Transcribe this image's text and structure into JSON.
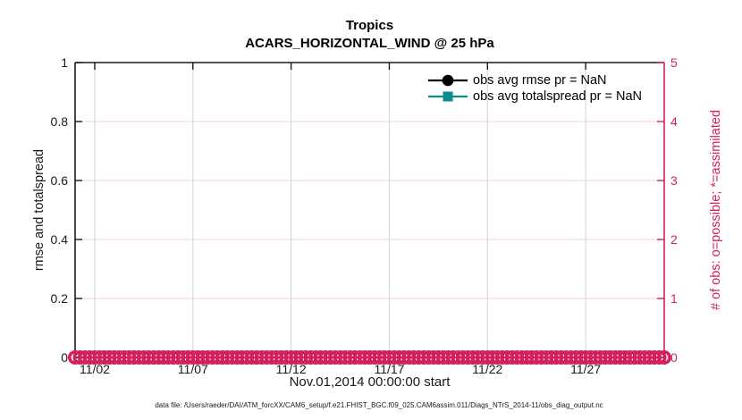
{
  "figure": {
    "title_line1": "Tropics",
    "title_line2": "ACARS_HORIZONTAL_WIND @ 25 hPa",
    "xlabel": "Nov.01,2014 00:00:00 start",
    "ylabel_left": "rmse and totalspread",
    "ylabel_right": "# of obs: o=possible; *=assimilated",
    "footer": "data file: /Users/raeder/DAI/ATM_forcXX/CAM6_setup/f.e21.FHIST_BGC.f09_025.CAM6assim.011/Diags_NTrS_2014-11/obs_diag_output.nc"
  },
  "legend": [
    {
      "label": "obs avg rmse pr = NaN",
      "color": "#000000",
      "marker": "circle"
    },
    {
      "label": "obs avg totalspread pr = NaN",
      "color": "#0d8e8e",
      "marker": "square"
    }
  ],
  "colors": {
    "obs_count_pink": "#d5205f",
    "grid_pink": "#f6d9e4",
    "grid_gray": "#d9d9d9",
    "axis_dark": "#1a1a1a",
    "teal": "#0d8e8e",
    "black": "#000000"
  },
  "chart_data": {
    "type": "line",
    "title": "Tropics",
    "subtitle": "ACARS_HORIZONTAL_WIND @ 25 hPa",
    "xlabel": "Nov.01,2014 00:00:00 start",
    "x_ticks": [
      "11/02",
      "11/07",
      "11/12",
      "11/17",
      "11/22",
      "11/27"
    ],
    "x_tick_days": [
      1,
      6,
      11,
      16,
      21,
      26
    ],
    "x_range_days": [
      0,
      30
    ],
    "x_bins_per_day": 4,
    "y_left": {
      "label": "rmse and totalspread",
      "tick_labels": [
        "0",
        "0.2",
        "0.4",
        "0.6",
        "0.8",
        "1"
      ],
      "tick_values": [
        0,
        0.2,
        0.4,
        0.6,
        0.8,
        1
      ],
      "range": [
        0,
        1
      ]
    },
    "y_right": {
      "label": "# of obs: o=possible; *=assimilated",
      "tick_labels": [
        "0",
        "1",
        "2",
        "3",
        "4",
        "5"
      ],
      "tick_values": [
        0,
        1,
        2,
        3,
        4,
        5
      ],
      "range": [
        0,
        5
      ]
    },
    "grid": true,
    "legend_position": "upper right",
    "series": [
      {
        "name": "obs avg rmse",
        "stat_value": "NaN",
        "axis": "left",
        "marker": "circle",
        "color": "#000000",
        "values": []
      },
      {
        "name": "obs avg totalspread",
        "stat_value": "NaN",
        "axis": "left",
        "marker": "square",
        "color": "#0d8e8e",
        "values": []
      },
      {
        "name": "# of obs possible (o)",
        "axis": "right",
        "marker": "o",
        "color": "#d5205f",
        "constant_value": 0,
        "note": "dense row of o markers at y=0 spanning Nov 1 - Dec 1, every 6-hour bin"
      }
    ]
  },
  "layout_note": ""
}
